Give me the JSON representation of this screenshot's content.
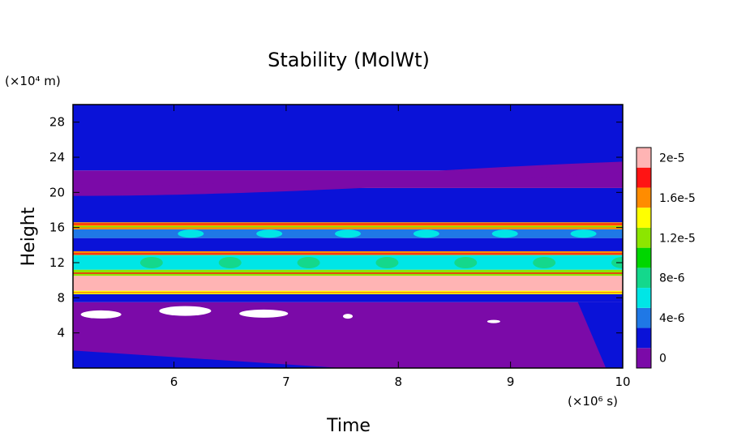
{
  "chart_data": {
    "type": "heatmap",
    "title": "Stability (MolWt)",
    "xlabel": "Time",
    "ylabel": "Height",
    "x_unit": "(×10⁶ s)",
    "y_unit": "(×10⁴ m)",
    "xlim": [
      5.1,
      10
    ],
    "ylim": [
      0,
      30
    ],
    "x_ticks": [
      "6",
      "7",
      "8",
      "9",
      "10"
    ],
    "y_ticks": [
      "4",
      "8",
      "12",
      "16",
      "20",
      "24",
      "28"
    ],
    "colorbar": {
      "levels": [
        0,
        2e-06,
        4e-06,
        6e-06,
        8e-06,
        1e-05,
        1.2e-05,
        1.4e-05,
        1.6e-05,
        1.8e-05,
        2e-05
      ],
      "labels": [
        "0",
        "4e-6",
        "8e-6",
        "1.2e-5",
        "1.6e-5",
        "2e-5"
      ],
      "colors": [
        "#7b0aa8",
        "#0a12d8",
        "#1f78e6",
        "#00e6e6",
        "#14d88c",
        "#00d600",
        "#8ce600",
        "#ffff00",
        "#ff8c00",
        "#ff1414",
        "#ffb4b4"
      ]
    },
    "layers": [
      {
        "y_range": [
          0,
          3
        ],
        "level": 0
      },
      {
        "y_range": [
          3,
          7.5
        ],
        "level": 0
      },
      {
        "y_range": [
          7.5,
          8.4
        ],
        "level": 1
      },
      {
        "y_range": [
          8.4,
          8.8
        ],
        "level": 7
      },
      {
        "y_range": [
          8.8,
          10.5
        ],
        "level": 10
      },
      {
        "y_range": [
          10.5,
          11.2
        ],
        "level": 6
      },
      {
        "y_range": [
          11.2,
          12.8
        ],
        "level": 3
      },
      {
        "y_range": [
          12.8,
          13.3
        ],
        "level": 8
      },
      {
        "y_range": [
          13.3,
          14.8
        ],
        "level": 1
      },
      {
        "y_range": [
          14.8,
          15.8
        ],
        "level": 2
      },
      {
        "y_range": [
          15.8,
          16.6
        ],
        "level": 8
      },
      {
        "y_range": [
          16.6,
          20.5
        ],
        "level": 1
      },
      {
        "y_range": [
          20.5,
          22.5
        ],
        "level": 0
      },
      {
        "y_range": [
          22.5,
          30
        ],
        "level": 1
      }
    ]
  }
}
